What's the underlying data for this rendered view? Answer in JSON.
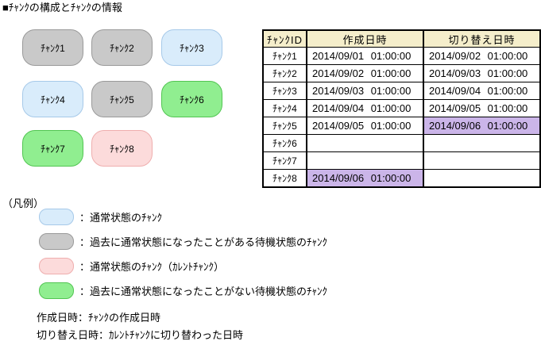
{
  "title": "■ﾁｬﾝｸの構成とﾁｬﾝｸの情報",
  "chunks": {
    "items": [
      {
        "label": "ﾁｬﾝｸ1",
        "state": "standby-used"
      },
      {
        "label": "ﾁｬﾝｸ2",
        "state": "standby-used"
      },
      {
        "label": "ﾁｬﾝｸ3",
        "state": "normal"
      },
      {
        "label": "ﾁｬﾝｸ4",
        "state": "normal"
      },
      {
        "label": "ﾁｬﾝｸ5",
        "state": "standby-used"
      },
      {
        "label": "ﾁｬﾝｸ6",
        "state": "fresh-standby"
      },
      {
        "label": "ﾁｬﾝｸ7",
        "state": "fresh-standby"
      },
      {
        "label": "ﾁｬﾝｸ8",
        "state": "current"
      }
    ]
  },
  "table": {
    "columns": [
      "ﾁｬﾝｸID",
      "作成日時",
      "切り替え日時"
    ],
    "rows": [
      {
        "id": "ﾁｬﾝｸ1",
        "created": "2014/09/01 01:00:00",
        "created_hl": "false",
        "switched": "2014/09/02 01:00:00",
        "switched_hl": "false"
      },
      {
        "id": "ﾁｬﾝｸ2",
        "created": "2014/09/02 01:00:00",
        "created_hl": "false",
        "switched": "2014/09/03 01:00:00",
        "switched_hl": "false"
      },
      {
        "id": "ﾁｬﾝｸ3",
        "created": "2014/09/03 01:00:00",
        "created_hl": "false",
        "switched": "2014/09/04 01:00:00",
        "switched_hl": "false"
      },
      {
        "id": "ﾁｬﾝｸ4",
        "created": "2014/09/04 01:00:00",
        "created_hl": "false",
        "switched": "2014/09/05 01:00:00",
        "switched_hl": "false"
      },
      {
        "id": "ﾁｬﾝｸ5",
        "created": "2014/09/05 01:00:00",
        "created_hl": "false",
        "switched": "2014/09/06 01:00:00",
        "switched_hl": "true"
      },
      {
        "id": "ﾁｬﾝｸ6",
        "created": "",
        "created_hl": "false",
        "switched": "",
        "switched_hl": "false"
      },
      {
        "id": "ﾁｬﾝｸ7",
        "created": "",
        "created_hl": "false",
        "switched": "",
        "switched_hl": "false"
      },
      {
        "id": "ﾁｬﾝｸ8",
        "created": "2014/09/06 01:00:00",
        "created_hl": "true",
        "switched": "",
        "switched_hl": "false"
      }
    ]
  },
  "legend": {
    "title": "（凡例）",
    "items": [
      {
        "state": "normal",
        "color": "#d9ecfb",
        "label": "：通常状態のﾁｬﾝｸ"
      },
      {
        "state": "standby-used",
        "color": "#c9c9c9",
        "label": "：過去に通常状態になったことがある待機状態のﾁｬﾝｸ"
      },
      {
        "state": "current",
        "color": "#fcdbdb",
        "label": "：通常状態のﾁｬﾝｸ（ｶﾚﾝﾄﾁｬﾝｸ）"
      },
      {
        "state": "fresh-standby",
        "color": "#90ee90",
        "label": "：過去に通常状態になったことがない待機状態のﾁｬﾝｸ"
      }
    ],
    "notes": [
      "作成日時：ﾁｬﾝｸの作成日時",
      "切り替え日時：ｶﾚﾝﾄﾁｬﾝｸに切り替わった日時"
    ]
  },
  "colors": {
    "normal_fill": "#d9ecfb",
    "standby_used_fill": "#c9c9c9",
    "current_fill": "#fcdbdb",
    "fresh_standby_fill": "#90ee90",
    "table_header_bg": "#f5eecb",
    "highlight_bg": "#cbb5e9",
    "grid": "#000000"
  }
}
